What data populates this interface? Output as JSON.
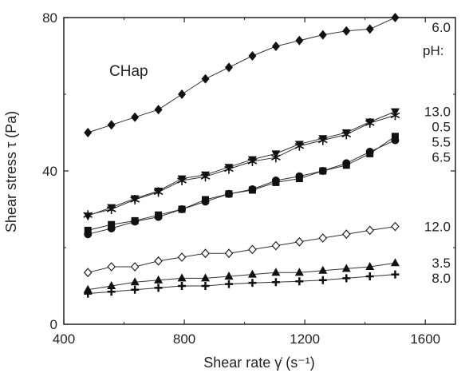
{
  "chart_data": {
    "type": "line",
    "title": "",
    "panel_label": "CHap",
    "legend_title": "pH:",
    "xlabel": "Shear rate γ̇ (s⁻¹)",
    "ylabel": "Shear stress τ (Pa)",
    "xlim": [
      400,
      1700
    ],
    "ylim": [
      0,
      80
    ],
    "xticks": [
      400,
      800,
      1200,
      1600
    ],
    "yticks": [
      0,
      40,
      80
    ],
    "grid": false,
    "x": [
      480,
      558,
      636,
      714,
      792,
      870,
      948,
      1026,
      1104,
      1182,
      1260,
      1338,
      1416,
      1500
    ],
    "series": [
      {
        "name": "6.0",
        "marker": "diamond-filled",
        "values": [
          50,
          52,
          54,
          56,
          60,
          64,
          67,
          70,
          72.5,
          74,
          75.5,
          76.5,
          77,
          80
        ]
      },
      {
        "name": "0.5",
        "marker": "star",
        "values": [
          28.5,
          30,
          32.5,
          34.5,
          37.5,
          38.5,
          40.5,
          42.5,
          43.5,
          46.5,
          48,
          49.5,
          52.5,
          54.5
        ]
      },
      {
        "name": "13.0",
        "marker": "triangle-down-filled",
        "values": [
          28.3,
          30.5,
          32.8,
          34.8,
          38,
          39,
          41,
          43,
          44.5,
          47,
          48.5,
          50,
          52.8,
          55.5
        ]
      },
      {
        "name": "5.5",
        "marker": "square-filled",
        "values": [
          24.5,
          26,
          27,
          28.5,
          30,
          32.5,
          34,
          35,
          37,
          38,
          40,
          41.5,
          44.5,
          49
        ]
      },
      {
        "name": "6.5",
        "marker": "circle-filled",
        "values": [
          23.5,
          25,
          26.8,
          28,
          30,
          32,
          34,
          35.2,
          37.5,
          38.6,
          40,
          42,
          45,
          48
        ]
      },
      {
        "name": "12.0",
        "marker": "diamond-open",
        "values": [
          13.5,
          15,
          15,
          16.5,
          17.5,
          18.5,
          18.5,
          19.5,
          20.5,
          21.5,
          22.5,
          23.5,
          24.5,
          25.5
        ]
      },
      {
        "name": "3.5",
        "marker": "triangle-up-filled",
        "values": [
          9,
          10,
          11,
          11.5,
          12,
          12,
          12.5,
          13,
          13.5,
          13.5,
          14,
          14.5,
          15,
          16
        ]
      },
      {
        "name": "8.0",
        "marker": "plus",
        "values": [
          8,
          8.5,
          9,
          9.5,
          10,
          10,
          10.5,
          10.8,
          11,
          11.2,
          11.5,
          12,
          12.5,
          13
        ]
      }
    ]
  }
}
